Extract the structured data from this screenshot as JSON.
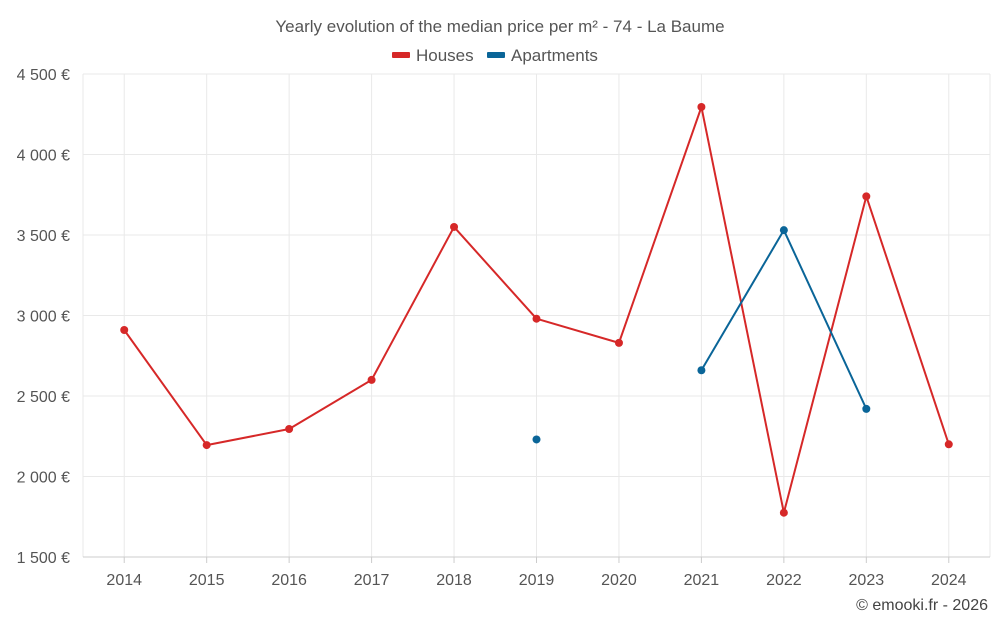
{
  "chart_data": {
    "type": "line",
    "title": "Yearly evolution of the median price per m² - 74 - La Baume",
    "categories": [
      "2014",
      "2015",
      "2016",
      "2017",
      "2018",
      "2019",
      "2020",
      "2021",
      "2022",
      "2023",
      "2024"
    ],
    "series": [
      {
        "name": "Houses",
        "color": "#d62828",
        "values": [
          2910,
          2195,
          2295,
          2600,
          3550,
          2980,
          2830,
          4295,
          1775,
          3740,
          2200
        ]
      },
      {
        "name": "Apartments",
        "color": "#0a6598",
        "values": [
          null,
          null,
          null,
          null,
          null,
          2230,
          null,
          2660,
          3530,
          2420,
          null
        ]
      }
    ],
    "ylim": [
      1500,
      4500
    ],
    "yticks": [
      1500,
      2000,
      2500,
      3000,
      3500,
      4000,
      4500
    ],
    "ytick_labels": [
      "1 500 €",
      "2 000 €",
      "2 500 €",
      "3 000 €",
      "3 500 €",
      "4 000 €",
      "4 500 €"
    ],
    "xlabel": "",
    "ylabel": "",
    "grid": true,
    "legend": "top-center"
  },
  "credit": "© emooki.fr - 2026"
}
